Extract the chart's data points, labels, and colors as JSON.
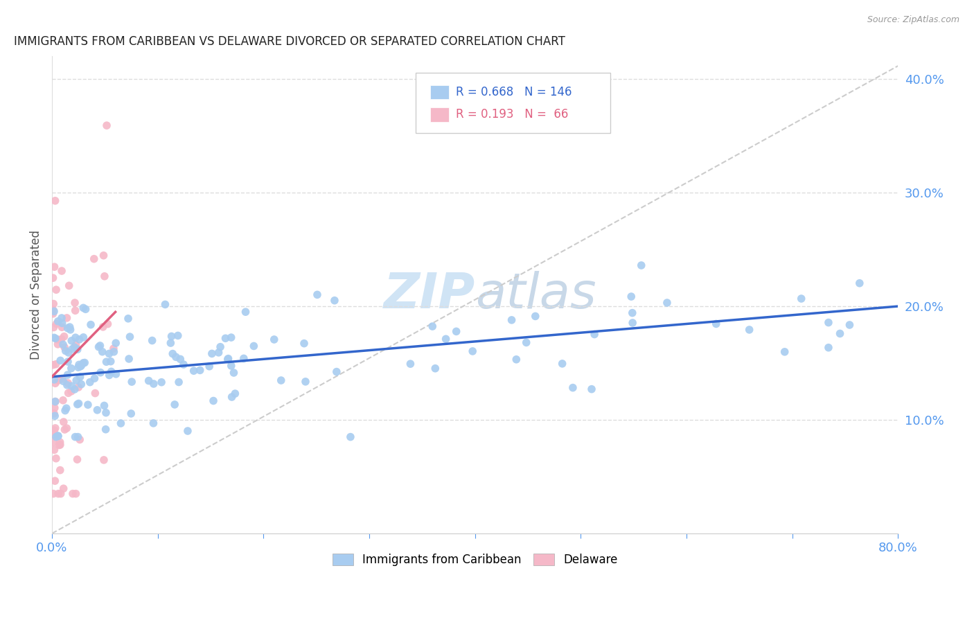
{
  "title": "IMMIGRANTS FROM CARIBBEAN VS DELAWARE DIVORCED OR SEPARATED CORRELATION CHART",
  "source": "Source: ZipAtlas.com",
  "ylabel_left": "Divorced or Separated",
  "legend_label_blue": "Immigrants from Caribbean",
  "legend_label_pink": "Delaware",
  "xlim": [
    0.0,
    0.8
  ],
  "ylim": [
    0.0,
    0.42
  ],
  "xticks": [
    0.0,
    0.1,
    0.2,
    0.3,
    0.4,
    0.5,
    0.6,
    0.7,
    0.8
  ],
  "xtick_labels_show": [
    "0.0%",
    "",
    "",
    "",
    "",
    "",
    "",
    "",
    "80.0%"
  ],
  "yticks_right": [
    0.1,
    0.2,
    0.3,
    0.4
  ],
  "blue_R": 0.668,
  "blue_N": 146,
  "pink_R": 0.193,
  "pink_N": 66,
  "blue_color": "#A8CCF0",
  "pink_color": "#F5B8C8",
  "blue_line_color": "#3366CC",
  "pink_line_color": "#E06080",
  "ref_line_color": "#CCCCCC",
  "title_color": "#222222",
  "right_tick_color": "#5599EE",
  "watermark_color": "#D0E4F5",
  "background_color": "#FFFFFF",
  "blue_trend_x0": 0.0,
  "blue_trend_y0": 0.138,
  "blue_trend_x1": 0.8,
  "blue_trend_y1": 0.2,
  "pink_trend_x0": 0.0,
  "pink_trend_y0": 0.138,
  "pink_trend_x1": 0.06,
  "pink_trend_y1": 0.195
}
